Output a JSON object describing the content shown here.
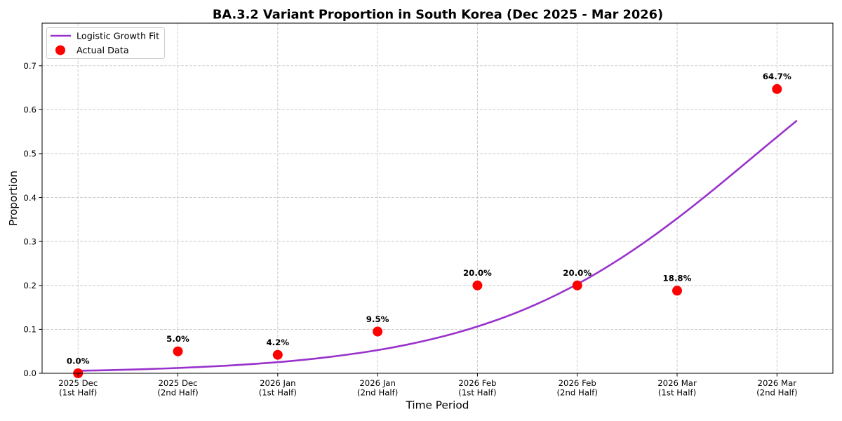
{
  "chart_data": {
    "type": "line",
    "title": "BA.3.2 Variant Proportion in South Korea (Dec 2025 - Mar 2026)",
    "xlabel": "Time Period",
    "ylabel": "Proportion",
    "categories": [
      "2025 Dec\n(1st Half)",
      "2025 Dec\n(2nd Half)",
      "2026 Jan\n(1st Half)",
      "2026 Jan\n(2nd Half)",
      "2026 Feb\n(1st Half)",
      "2026 Feb\n(2nd Half)",
      "2026 Mar\n(1st Half)",
      "2026 Mar\n(2nd Half)"
    ],
    "xlim": [
      -0.36,
      7.56
    ],
    "ylim": [
      0,
      0.797
    ],
    "yticks": [
      0.0,
      0.1,
      0.2,
      0.3,
      0.4,
      0.5,
      0.6,
      0.7
    ],
    "ytick_labels": [
      "0.0",
      "0.1",
      "0.2",
      "0.3",
      "0.4",
      "0.5",
      "0.6",
      "0.7"
    ],
    "grid": true,
    "legend_position": "upper left",
    "series": [
      {
        "name": "Logistic Growth Fit",
        "kind": "line",
        "color": "#9932CC",
        "x": [
          0,
          0.3,
          0.6,
          0.9,
          1.2,
          1.5,
          1.8,
          2.1,
          2.4,
          2.7,
          3.0,
          3.3,
          3.6,
          3.9,
          4.2,
          4.5,
          4.8,
          5.1,
          5.4,
          5.7,
          6.0,
          6.3,
          6.6,
          6.9,
          7.2
        ],
        "y": [
          0.0057,
          0.0071,
          0.0089,
          0.0112,
          0.014,
          0.0175,
          0.0219,
          0.0273,
          0.0341,
          0.0425,
          0.0527,
          0.0654,
          0.0808,
          0.0994,
          0.1218,
          0.1483,
          0.1795,
          0.2155,
          0.2566,
          0.3024,
          0.3525,
          0.4061,
          0.4621,
          0.519,
          0.5754
        ]
      },
      {
        "name": "Actual Data",
        "kind": "scatter",
        "color": "#FF0000",
        "x": [
          0,
          1,
          2,
          3,
          4,
          5,
          6,
          7
        ],
        "values": [
          0.0,
          0.05,
          0.042,
          0.095,
          0.2,
          0.2,
          0.188,
          0.647
        ],
        "labels": [
          "0.0%",
          "5.0%",
          "4.2%",
          "9.5%",
          "20.0%",
          "20.0%",
          "18.8%",
          "64.7%"
        ]
      }
    ]
  }
}
